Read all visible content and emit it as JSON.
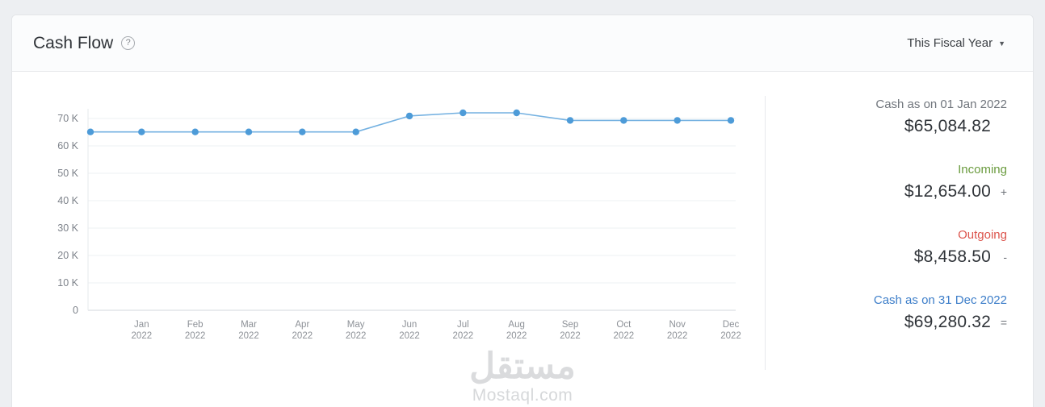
{
  "header": {
    "title": "Cash Flow",
    "help_label": "?",
    "period_selector": {
      "label": "This Fiscal Year",
      "caret": "▼"
    }
  },
  "summary": {
    "rows": [
      {
        "label": "Cash as on 01 Jan 2022",
        "amount": "$65,084.82",
        "operator": ""
      },
      {
        "label": "Incoming",
        "amount": "$12,654.00",
        "operator": "+"
      },
      {
        "label": "Outgoing",
        "amount": "$8,458.50",
        "operator": "-"
      },
      {
        "label": "Cash as on 31 Dec 2022",
        "amount": "$69,280.32",
        "operator": "="
      }
    ]
  },
  "colors": {
    "incoming": "#6a9b3e",
    "outgoing": "#dc544c",
    "closing_link": "#3d7ec9",
    "line": "#74b1e1",
    "point": "#4d9bd8"
  },
  "watermark": {
    "arabic": "مستقل",
    "latin": "Mostaql.com"
  },
  "chart_data": {
    "type": "line",
    "title": "Cash Flow",
    "xlabel": "",
    "ylabel": "",
    "year": "2022",
    "categories": [
      "Jan",
      "Feb",
      "Mar",
      "Apr",
      "May",
      "Jun",
      "Jul",
      "Aug",
      "Sep",
      "Oct",
      "Nov",
      "Dec"
    ],
    "opening_balance": 65084.82,
    "values": [
      65084.82,
      65084.82,
      65084.82,
      65084.82,
      65084.82,
      70900,
      72050,
      72050,
      69300,
      69300,
      69300,
      69280.32
    ],
    "y_ticks": [
      "0",
      "10 K",
      "20 K",
      "30 K",
      "40 K",
      "50 K",
      "60 K",
      "70 K"
    ],
    "y_tick_step": 10000,
    "ylim": [
      0,
      75000
    ],
    "grid": true,
    "legend": false,
    "line_color": "#74b1e1",
    "point_color": "#4d9bd8"
  }
}
